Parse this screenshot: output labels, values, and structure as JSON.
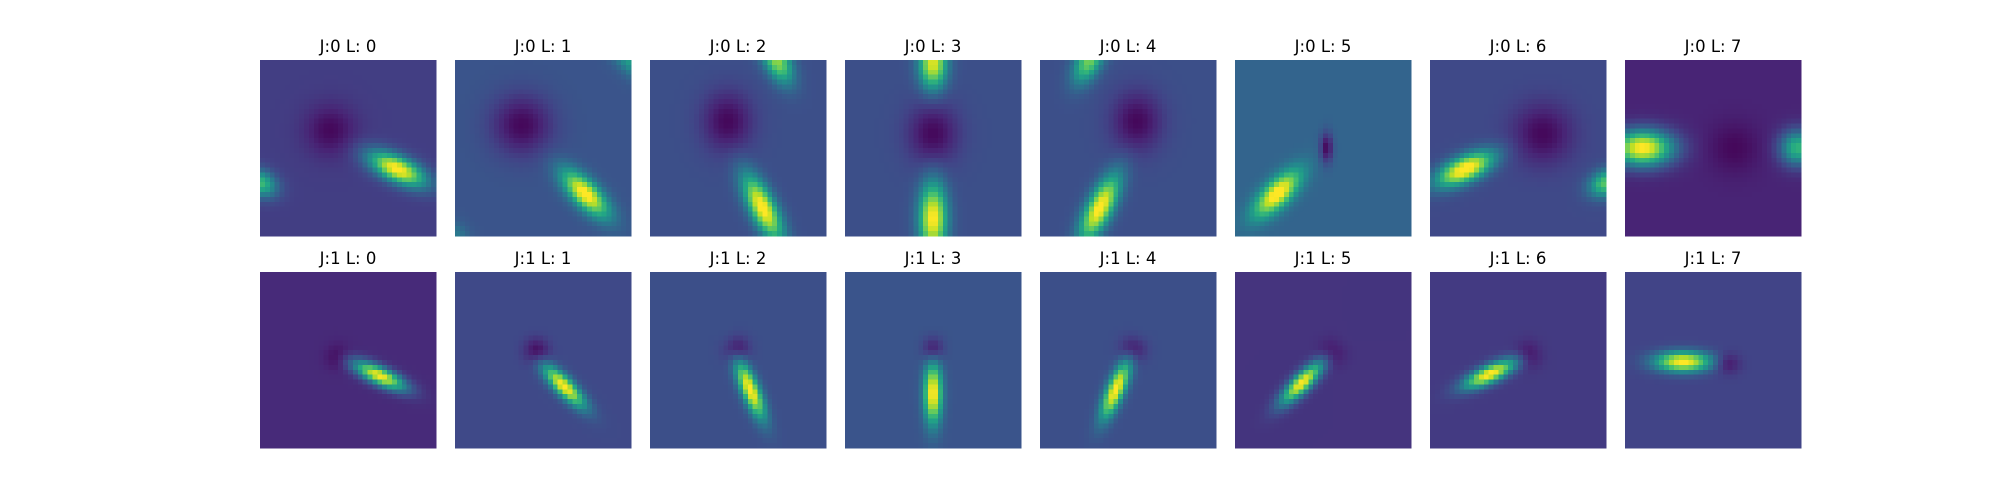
{
  "chart_data": {
    "type": "heatmap",
    "colormap": "viridis",
    "axes_visible": false,
    "grid": false,
    "legend": "none",
    "layout": {
      "rows": 2,
      "cols": 8
    },
    "colors": {
      "viridis": [
        "#440154",
        "#482475",
        "#414487",
        "#355f8d",
        "#2a788e",
        "#21918c",
        "#22a884",
        "#44bf70",
        "#7ad151",
        "#bddf26",
        "#fde725"
      ]
    },
    "panels": [
      {
        "title": "J:0 L: 0",
        "j": 0,
        "l": 0,
        "background": 0.18,
        "dark_spot": {
          "x": 0.4,
          "y": 0.4,
          "sx": 0.1,
          "sy": 0.1,
          "amp": 0.16
        },
        "blobs": [
          {
            "x": 0.78,
            "y": 0.62,
            "sx": 0.12,
            "sy": 0.05,
            "angle": 25,
            "amp": 0.85
          },
          {
            "x": 0.0,
            "y": 0.7,
            "sx": 0.07,
            "sy": 0.05,
            "angle": 25,
            "amp": 0.5
          }
        ]
      },
      {
        "title": "J:0 L: 1",
        "j": 0,
        "l": 1,
        "background": 0.26,
        "dark_spot": {
          "x": 0.38,
          "y": 0.37,
          "sx": 0.12,
          "sy": 0.12,
          "amp": 0.24
        },
        "blobs": [
          {
            "x": 0.74,
            "y": 0.76,
            "sx": 0.12,
            "sy": 0.05,
            "angle": 45,
            "amp": 0.78
          },
          {
            "x": 1.0,
            "y": 0.0,
            "sx": 0.1,
            "sy": 0.05,
            "angle": 45,
            "amp": 0.3
          },
          {
            "x": 0.0,
            "y": 1.0,
            "sx": 0.06,
            "sy": 0.05,
            "angle": 45,
            "amp": 0.15
          }
        ]
      },
      {
        "title": "J:0 L: 2",
        "j": 0,
        "l": 2,
        "background": 0.24,
        "dark_spot": {
          "x": 0.44,
          "y": 0.35,
          "sx": 0.1,
          "sy": 0.12,
          "amp": 0.22
        },
        "blobs": [
          {
            "x": 0.64,
            "y": 0.84,
            "sx": 0.14,
            "sy": 0.05,
            "angle": 63,
            "amp": 0.8
          },
          {
            "x": 0.72,
            "y": 0.0,
            "sx": 0.1,
            "sy": 0.05,
            "angle": 63,
            "amp": 0.6
          }
        ]
      },
      {
        "title": "J:0 L: 3",
        "j": 0,
        "l": 3,
        "background": 0.24,
        "dark_spot": {
          "x": 0.5,
          "y": 0.42,
          "sx": 0.1,
          "sy": 0.12,
          "amp": 0.22
        },
        "blobs": [
          {
            "x": 0.5,
            "y": 0.9,
            "sx": 0.14,
            "sy": 0.055,
            "angle": 90,
            "amp": 0.78
          },
          {
            "x": 0.5,
            "y": 0.02,
            "sx": 0.1,
            "sy": 0.055,
            "angle": 90,
            "amp": 0.72
          }
        ]
      },
      {
        "title": "J:0 L: 4",
        "j": 0,
        "l": 4,
        "background": 0.24,
        "dark_spot": {
          "x": 0.55,
          "y": 0.35,
          "sx": 0.1,
          "sy": 0.12,
          "amp": 0.22
        },
        "blobs": [
          {
            "x": 0.34,
            "y": 0.84,
            "sx": 0.14,
            "sy": 0.05,
            "angle": 117,
            "amp": 0.8
          },
          {
            "x": 0.28,
            "y": 0.0,
            "sx": 0.1,
            "sy": 0.05,
            "angle": 117,
            "amp": 0.55
          }
        ]
      },
      {
        "title": "J:0 L: 5",
        "j": 0,
        "l": 5,
        "background": 0.32,
        "dark_spot": {
          "x": 0.52,
          "y": 0.5,
          "sx": 0.025,
          "sy": 0.06,
          "amp": 0.3
        },
        "blobs": [
          {
            "x": 0.24,
            "y": 0.76,
            "sx": 0.12,
            "sy": 0.05,
            "angle": 135,
            "amp": 0.74
          }
        ]
      },
      {
        "title": "J:0 L: 6",
        "j": 0,
        "l": 6,
        "background": 0.22,
        "dark_spot": {
          "x": 0.64,
          "y": 0.42,
          "sx": 0.12,
          "sy": 0.12,
          "amp": 0.2
        },
        "blobs": [
          {
            "x": 0.2,
            "y": 0.62,
            "sx": 0.12,
            "sy": 0.05,
            "angle": 155,
            "amp": 0.85
          },
          {
            "x": 1.0,
            "y": 0.7,
            "sx": 0.07,
            "sy": 0.05,
            "angle": 155,
            "amp": 0.52
          }
        ]
      },
      {
        "title": "J:0 L: 7",
        "j": 0,
        "l": 7,
        "background": 0.1,
        "dark_spot": {
          "x": 0.62,
          "y": 0.5,
          "sx": 0.1,
          "sy": 0.1,
          "amp": 0.08
        },
        "blobs": [
          {
            "x": 0.1,
            "y": 0.5,
            "sx": 0.12,
            "sy": 0.07,
            "angle": 0,
            "amp": 0.92
          },
          {
            "x": 0.98,
            "y": 0.5,
            "sx": 0.07,
            "sy": 0.07,
            "angle": 0,
            "amp": 0.55
          }
        ]
      },
      {
        "title": "J:1 L: 0",
        "j": 1,
        "l": 0,
        "background": 0.12,
        "dark_spot": {
          "x": 0.44,
          "y": 0.48,
          "sx": 0.05,
          "sy": 0.05,
          "amp": 0.1
        },
        "blobs": [
          {
            "x": 0.68,
            "y": 0.59,
            "sx": 0.11,
            "sy": 0.035,
            "angle": 25,
            "amp": 0.88
          }
        ]
      },
      {
        "title": "J:1 L: 1",
        "j": 1,
        "l": 1,
        "background": 0.22,
        "dark_spot": {
          "x": 0.46,
          "y": 0.45,
          "sx": 0.05,
          "sy": 0.05,
          "amp": 0.2
        },
        "blobs": [
          {
            "x": 0.62,
            "y": 0.65,
            "sx": 0.11,
            "sy": 0.035,
            "angle": 45,
            "amp": 0.8
          }
        ]
      },
      {
        "title": "J:1 L: 2",
        "j": 1,
        "l": 2,
        "background": 0.24,
        "dark_spot": {
          "x": 0.49,
          "y": 0.44,
          "sx": 0.05,
          "sy": 0.05,
          "amp": 0.2
        },
        "blobs": [
          {
            "x": 0.57,
            "y": 0.67,
            "sx": 0.12,
            "sy": 0.035,
            "angle": 67,
            "amp": 0.8
          }
        ]
      },
      {
        "title": "J:1 L: 3",
        "j": 1,
        "l": 3,
        "background": 0.26,
        "dark_spot": {
          "x": 0.5,
          "y": 0.44,
          "sx": 0.04,
          "sy": 0.05,
          "amp": 0.22
        },
        "blobs": [
          {
            "x": 0.5,
            "y": 0.69,
            "sx": 0.12,
            "sy": 0.035,
            "angle": 90,
            "amp": 0.78
          }
        ]
      },
      {
        "title": "J:1 L: 4",
        "j": 1,
        "l": 4,
        "background": 0.24,
        "dark_spot": {
          "x": 0.53,
          "y": 0.44,
          "sx": 0.05,
          "sy": 0.05,
          "amp": 0.2
        },
        "blobs": [
          {
            "x": 0.43,
            "y": 0.67,
            "sx": 0.12,
            "sy": 0.035,
            "angle": 113,
            "amp": 0.8
          }
        ]
      },
      {
        "title": "J:1 L: 5",
        "j": 1,
        "l": 5,
        "background": 0.15,
        "dark_spot": {
          "x": 0.55,
          "y": 0.46,
          "sx": 0.05,
          "sy": 0.05,
          "amp": 0.12
        },
        "blobs": [
          {
            "x": 0.38,
            "y": 0.63,
            "sx": 0.11,
            "sy": 0.035,
            "angle": 135,
            "amp": 0.86
          }
        ]
      },
      {
        "title": "J:1 L: 6",
        "j": 1,
        "l": 6,
        "background": 0.17,
        "dark_spot": {
          "x": 0.56,
          "y": 0.47,
          "sx": 0.05,
          "sy": 0.05,
          "amp": 0.14
        },
        "blobs": [
          {
            "x": 0.34,
            "y": 0.58,
            "sx": 0.11,
            "sy": 0.035,
            "angle": 155,
            "amp": 0.86
          }
        ]
      },
      {
        "title": "J:1 L: 7",
        "j": 1,
        "l": 7,
        "background": 0.2,
        "dark_spot": {
          "x": 0.58,
          "y": 0.52,
          "sx": 0.05,
          "sy": 0.04,
          "amp": 0.16
        },
        "blobs": [
          {
            "x": 0.33,
            "y": 0.51,
            "sx": 0.11,
            "sy": 0.04,
            "angle": 0,
            "amp": 0.82
          }
        ]
      }
    ]
  }
}
